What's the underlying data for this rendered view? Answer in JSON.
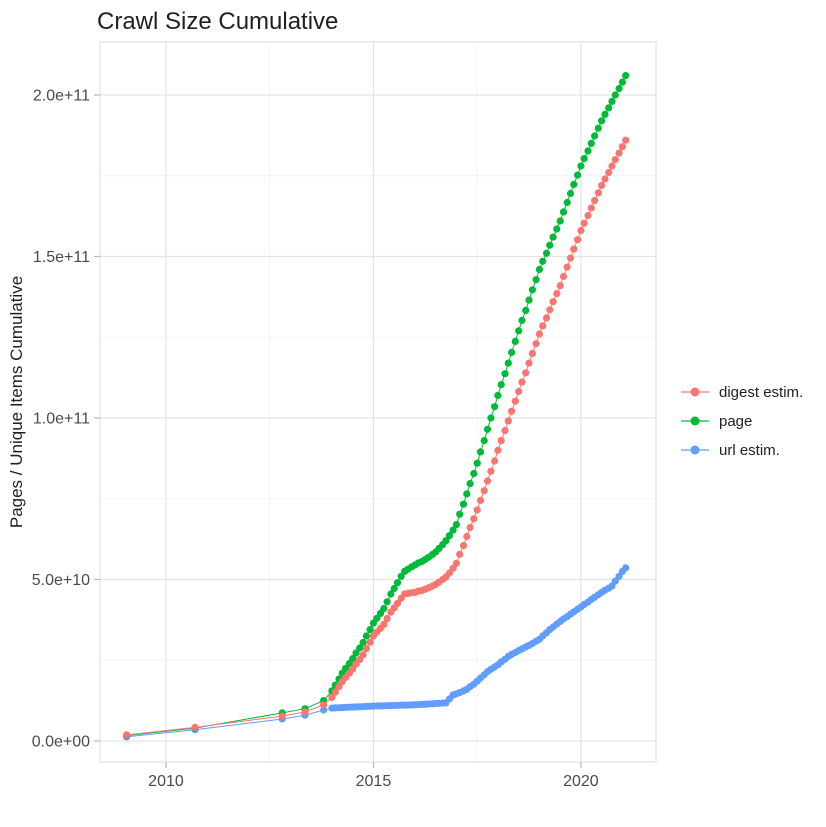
{
  "chart_data": {
    "type": "scatter",
    "title": "Crawl Size Cumulative",
    "xlabel": "",
    "ylabel": "Pages / Unique Items Cumulative",
    "legend_position": "right",
    "grid": true,
    "x_ticks": [
      2010,
      2015,
      2020
    ],
    "x_tick_labels": [
      "2010",
      "2015",
      "2020"
    ],
    "x_minor_ticks": [
      2012.5,
      2017.5
    ],
    "y_ticks": [
      0,
      50000000000.0,
      100000000000.0,
      150000000000.0,
      200000000000.0
    ],
    "y_tick_labels": [
      "0.0e+00",
      "5.0e+10",
      "1.0e+11",
      "1.5e+11",
      "2.0e+11"
    ],
    "y_minor_ticks": [
      25000000000.0,
      75000000000.0,
      125000000000.0,
      175000000000.0
    ],
    "xlim": [
      2008.41,
      2021.81
    ],
    "ylim": [
      -6500000000.0,
      216400000000.0
    ],
    "x_unit": "year",
    "y_unit": "pages / unique items (cumulative)",
    "x": [
      2009.05,
      2010.7,
      2012.8,
      2013.35,
      2013.8,
      2014.0,
      2014.08,
      2014.17,
      2014.25,
      2014.33,
      2014.42,
      2014.5,
      2014.58,
      2014.67,
      2014.75,
      2014.83,
      2014.92,
      2015.0,
      2015.08,
      2015.17,
      2015.25,
      2015.33,
      2015.42,
      2015.5,
      2015.58,
      2015.67,
      2015.75,
      2015.83,
      2015.92,
      2016.0,
      2016.08,
      2016.17,
      2016.25,
      2016.33,
      2016.42,
      2016.5,
      2016.58,
      2016.67,
      2016.75,
      2016.83,
      2016.92,
      2017.0,
      2017.08,
      2017.17,
      2017.25,
      2017.33,
      2017.42,
      2017.5,
      2017.58,
      2017.67,
      2017.75,
      2017.83,
      2017.92,
      2018.0,
      2018.08,
      2018.17,
      2018.25,
      2018.33,
      2018.42,
      2018.5,
      2018.58,
      2018.67,
      2018.75,
      2018.83,
      2018.92,
      2019.0,
      2019.08,
      2019.17,
      2019.25,
      2019.33,
      2019.42,
      2019.5,
      2019.58,
      2019.67,
      2019.75,
      2019.83,
      2019.92,
      2020.0,
      2020.08,
      2020.17,
      2020.25,
      2020.33,
      2020.42,
      2020.5,
      2020.58,
      2020.67,
      2020.75,
      2020.83,
      2020.92,
      2021.0,
      2021.08
    ],
    "series": [
      {
        "name": "digest estim.",
        "color": "#F8766D",
        "values": [
          1900000000.0,
          4200000000.0,
          7700000000.0,
          9000000000.0,
          11200000000.0,
          13500000000.0,
          15100000000.0,
          16800000000.0,
          18400000000.0,
          19700000000.0,
          21000000000.0,
          22300000000.0,
          23800000000.0,
          25200000000.0,
          26700000000.0,
          28600000000.0,
          30600000000.0,
          32500000000.0,
          33700000000.0,
          34900000000.0,
          36100000000.0,
          37900000000.0,
          39900000000.0,
          41200000000.0,
          42600000000.0,
          44200000000.0,
          45500000000.0,
          45700000000.0,
          45900000000.0,
          46000000000.0,
          46400000000.0,
          46600000000.0,
          47000000000.0,
          47400000000.0,
          48000000000.0,
          48500000000.0,
          49200000000.0,
          50000000000.0,
          50800000000.0,
          52000000000.0,
          53500000000.0,
          55000000000.0,
          57800000000.0,
          60500000000.0,
          63300000000.0,
          66100000000.0,
          68800000000.0,
          71500000000.0,
          74500000000.0,
          77500000000.0,
          80500000000.0,
          83500000000.0,
          86700000000.0,
          90000000000.0,
          93000000000.0,
          96100000000.0,
          99100000000.0,
          102100000000.0,
          105200000000.0,
          108200000000.0,
          111100000000.0,
          114000000000.0,
          117000000000.0,
          120000000000.0,
          123000000000.0,
          126000000000.0,
          128500000000.0,
          131000000000.0,
          133500000000.0,
          136000000000.0,
          138500000000.0,
          141000000000.0,
          143800000000.0,
          146700000000.0,
          149500000000.0,
          152300000000.0,
          155200000000.0,
          158000000000.0,
          160300000000.0,
          162700000000.0,
          165000000000.0,
          167300000000.0,
          169700000000.0,
          172000000000.0,
          174000000000.0,
          176000000000.0,
          178000000000.0,
          180000000000.0,
          182000000000.0,
          184000000000.0,
          186000000000.0
        ]
      },
      {
        "name": "page",
        "color": "#00BA38",
        "values": [
          1700000000.0,
          4000000000.0,
          8700000000.0,
          10000000000.0,
          12500000000.0,
          15500000000.0,
          17300000000.0,
          19200000000.0,
          21000000000.0,
          22500000000.0,
          24000000000.0,
          25500000000.0,
          27200000000.0,
          28800000000.0,
          30500000000.0,
          32500000000.0,
          34500000000.0,
          36500000000.0,
          38000000000.0,
          39500000000.0,
          41000000000.0,
          43100000000.0,
          45500000000.0,
          47200000000.0,
          49000000000.0,
          51000000000.0,
          52500000000.0,
          53200000000.0,
          53900000000.0,
          54500000000.0,
          55100000000.0,
          55600000000.0,
          56200000000.0,
          56900000000.0,
          57700000000.0,
          58500000000.0,
          59600000000.0,
          60800000000.0,
          62000000000.0,
          63600000000.0,
          65300000000.0,
          67000000000.0,
          70200000000.0,
          73300000000.0,
          76500000000.0,
          79700000000.0,
          82800000000.0,
          86000000000.0,
          89500000000.0,
          93000000000.0,
          96500000000.0,
          100000000000.0,
          103500000000.0,
          107000000000.0,
          110300000000.0,
          113700000000.0,
          117000000000.0,
          120300000000.0,
          123700000000.0,
          127000000000.0,
          130200000000.0,
          133300000000.0,
          136500000000.0,
          139700000000.0,
          142800000000.0,
          146000000000.0,
          148500000000.0,
          151000000000.0,
          153500000000.0,
          156000000000.0,
          158500000000.0,
          161000000000.0,
          163800000000.0,
          166700000000.0,
          169500000000.0,
          172300000000.0,
          175200000000.0,
          178000000000.0,
          180300000000.0,
          182700000000.0,
          185000000000.0,
          187300000000.0,
          189700000000.0,
          192000000000.0,
          194000000000.0,
          196000000000.0,
          198000000000.0,
          200000000000.0,
          202000000000.0,
          204000000000.0,
          206000000000.0
        ]
      },
      {
        "name": "url estim.",
        "color": "#619CFF",
        "values": [
          1300000000.0,
          3500000000.0,
          6800000000.0,
          8000000000.0,
          9600000000.0,
          10200000000.0,
          10250000000.0,
          10300000000.0,
          10350000000.0,
          10400000000.0,
          10450000000.0,
          10500000000.0,
          10550000000.0,
          10600000000.0,
          10650000000.0,
          10700000000.0,
          10750000000.0,
          10800000000.0,
          10830000000.0,
          10870000000.0,
          10900000000.0,
          10930000000.0,
          10970000000.0,
          11000000000.0,
          11030000000.0,
          11070000000.0,
          11100000000.0,
          11130000000.0,
          11170000000.0,
          11200000000.0,
          11270000000.0,
          11330000000.0,
          11400000000.0,
          11470000000.0,
          11530000000.0,
          11600000000.0,
          11670000000.0,
          11730000000.0,
          11800000000.0,
          13000000000.0,
          14200000000.0,
          14600000000.0,
          15000000000.0,
          15500000000.0,
          16000000000.0,
          16800000000.0,
          17600000000.0,
          18500000000.0,
          19500000000.0,
          20500000000.0,
          21500000000.0,
          22200000000.0,
          22900000000.0,
          23600000000.0,
          24500000000.0,
          25300000000.0,
          26200000000.0,
          26800000000.0,
          27400000000.0,
          28000000000.0,
          28500000000.0,
          29100000000.0,
          29600000000.0,
          30200000000.0,
          30900000000.0,
          31500000000.0,
          32500000000.0,
          33500000000.0,
          34500000000.0,
          35300000000.0,
          36200000000.0,
          37000000000.0,
          37800000000.0,
          38500000000.0,
          39300000000.0,
          40000000000.0,
          40800000000.0,
          41500000000.0,
          42300000000.0,
          43000000000.0,
          43800000000.0,
          44500000000.0,
          45300000000.0,
          46000000000.0,
          46700000000.0,
          47300000000.0,
          48000000000.0,
          49500000000.0,
          51000000000.0,
          52500000000.0,
          53600000000.0
        ]
      }
    ]
  }
}
